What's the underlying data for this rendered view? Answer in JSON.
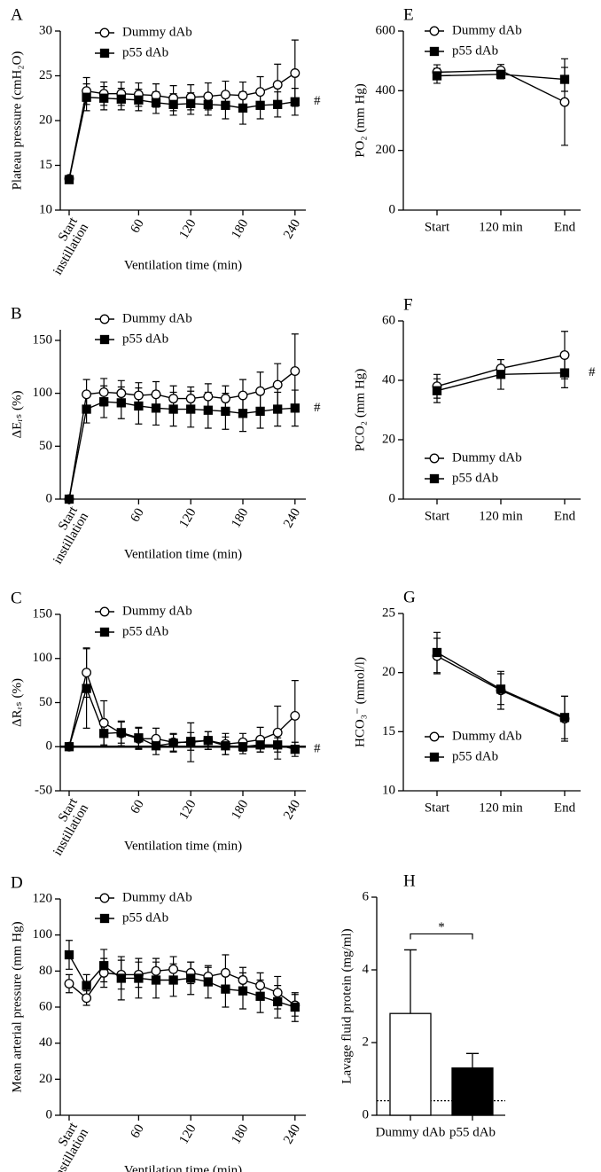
{
  "chart_data": [
    {
      "type": "line",
      "title": "A",
      "ylabel": "Plateau pressure (cmH₂O)",
      "xlabel": "Ventilation time (min)",
      "categories": [
        "Start instillation",
        null,
        null,
        null,
        "60",
        null,
        null,
        "120",
        null,
        null,
        "180",
        null,
        null,
        "240"
      ],
      "series": [
        {
          "name": "Dummy dAb",
          "color": "#000000",
          "fill": "#ffffff",
          "marker": "circle",
          "values": [
            13.5,
            23.3,
            23.0,
            23.0,
            22.9,
            22.8,
            22.5,
            22.6,
            22.7,
            22.9,
            22.8,
            23.2,
            24.0,
            25.3
          ],
          "errors": [
            0.2,
            1.5,
            1.3,
            1.3,
            1.3,
            1.3,
            1.4,
            1.4,
            1.5,
            1.5,
            1.5,
            1.7,
            2.3,
            3.7
          ]
        },
        {
          "name": "p55 dAb",
          "color": "#000000",
          "fill": "#000000",
          "marker": "square",
          "values": [
            13.4,
            22.6,
            22.5,
            22.4,
            22.3,
            22.0,
            21.8,
            21.9,
            21.8,
            21.7,
            21.4,
            21.7,
            21.8,
            22.1
          ],
          "errors": [
            0.2,
            1.5,
            1.3,
            1.2,
            1.2,
            1.2,
            1.2,
            1.2,
            1.2,
            1.5,
            1.8,
            1.5,
            1.4,
            1.5
          ]
        }
      ],
      "ylim": [
        10,
        30
      ],
      "yticks": [
        10,
        15,
        20,
        25,
        30
      ],
      "legend": "upper left",
      "annotation": "#"
    },
    {
      "type": "line",
      "title": "B",
      "ylabel": "ΔEᵣₛ (%)",
      "xlabel": "Ventilation time (min)",
      "categories": [
        "Start instillation",
        null,
        null,
        null,
        "60",
        null,
        null,
        "120",
        null,
        null,
        "180",
        null,
        null,
        "240"
      ],
      "series": [
        {
          "name": "Dummy dAb",
          "color": "#000000",
          "fill": "#ffffff",
          "marker": "circle",
          "values": [
            0,
            99,
            101,
            100,
            98,
            99,
            95,
            95,
            97,
            95,
            98,
            102,
            108,
            121
          ],
          "errors": [
            0,
            14,
            13,
            12,
            12,
            12,
            12,
            11,
            12,
            12,
            15,
            18,
            20,
            35
          ]
        },
        {
          "name": "p55 dAb",
          "color": "#000000",
          "fill": "#000000",
          "marker": "square",
          "values": [
            0,
            85,
            92,
            91,
            88,
            86,
            85,
            85,
            84,
            83,
            81,
            83,
            85,
            86
          ],
          "errors": [
            0,
            13,
            15,
            15,
            17,
            16,
            16,
            17,
            17,
            17,
            17,
            16,
            16,
            17
          ]
        }
      ],
      "ylim": [
        0,
        160
      ],
      "yticks": [
        0,
        50,
        100,
        150
      ],
      "legend": "upper left",
      "annotation": "#"
    },
    {
      "type": "line",
      "title": "C",
      "ylabel": "ΔRᵣₛ (%)",
      "xlabel": "Ventilation time (min)",
      "categories": [
        "Start instillation",
        null,
        null,
        null,
        "60",
        null,
        null,
        "120",
        null,
        null,
        "180",
        null,
        null,
        "240"
      ],
      "series": [
        {
          "name": "Dummy dAb",
          "color": "#000000",
          "fill": "#ffffff",
          "marker": "circle",
          "values": [
            0,
            84,
            27,
            15,
            9,
            9,
            5,
            5,
            7,
            3,
            5,
            8,
            16,
            35
          ],
          "errors": [
            0,
            28,
            25,
            14,
            12,
            12,
            10,
            22,
            10,
            12,
            10,
            14,
            30,
            40
          ]
        },
        {
          "name": "p55 dAb",
          "color": "#000000",
          "fill": "#000000",
          "marker": "square",
          "values": [
            0,
            66,
            15,
            16,
            10,
            1,
            4,
            6,
            7,
            1,
            0,
            2,
            2,
            -3
          ],
          "errors": [
            0,
            45,
            15,
            12,
            12,
            10,
            10,
            10,
            10,
            10,
            8,
            8,
            8,
            8
          ]
        }
      ],
      "ylim": [
        -50,
        150
      ],
      "yticks": [
        -50,
        0,
        50,
        100,
        150
      ],
      "legend": "upper left",
      "annotation": "#",
      "reference_line": 0,
      "reference_style": "solid"
    },
    {
      "type": "line",
      "title": "D",
      "ylabel": "Mean arterial pressure (mm Hg)",
      "xlabel": "Ventilation time (min)",
      "categories": [
        "Start instillation",
        null,
        null,
        null,
        "60",
        null,
        null,
        "120",
        null,
        null,
        "180",
        null,
        null,
        "240"
      ],
      "series": [
        {
          "name": "Dummy dAb",
          "color": "#000000",
          "fill": "#ffffff",
          "marker": "circle",
          "values": [
            73,
            65,
            79,
            78,
            78,
            80,
            81,
            79,
            77,
            79,
            75,
            72,
            68,
            61
          ],
          "errors": [
            5,
            4,
            8,
            8,
            7,
            7,
            7,
            6,
            5,
            10,
            7,
            7,
            9,
            6
          ]
        },
        {
          "name": "p55 dAb",
          "color": "#000000",
          "fill": "#000000",
          "marker": "square",
          "values": [
            89,
            72,
            83,
            76,
            76,
            75,
            75,
            76,
            74,
            70,
            69,
            66,
            63,
            60
          ],
          "errors": [
            8,
            6,
            9,
            12,
            11,
            10,
            9,
            9,
            9,
            10,
            10,
            9,
            9,
            8
          ]
        }
      ],
      "ylim": [
        0,
        120
      ],
      "yticks": [
        0,
        20,
        40,
        60,
        80,
        100,
        120
      ],
      "legend": "upper left"
    },
    {
      "type": "line",
      "title": "E",
      "ylabel": "PO₂ (mm Hg)",
      "categories": [
        "Start",
        "120 min",
        "End"
      ],
      "series": [
        {
          "name": "Dummy dAb",
          "color": "#000000",
          "fill": "#ffffff",
          "marker": "circle",
          "values": [
            462,
            468,
            362
          ],
          "errors": [
            25,
            20,
            145
          ]
        },
        {
          "name": "p55 dAb",
          "color": "#000000",
          "fill": "#000000",
          "marker": "square",
          "values": [
            450,
            455,
            438
          ],
          "errors": [
            25,
            15,
            40
          ]
        }
      ],
      "ylim": [
        0,
        600
      ],
      "yticks": [
        0,
        200,
        400,
        600
      ],
      "legend": "upper left"
    },
    {
      "type": "line",
      "title": "F",
      "ylabel": "PCO₂ (mm Hg)",
      "categories": [
        "Start",
        "120 min",
        "End"
      ],
      "series": [
        {
          "name": "Dummy dAb",
          "color": "#000000",
          "fill": "#ffffff",
          "marker": "circle",
          "values": [
            38,
            44,
            48.5
          ],
          "errors": [
            4,
            3,
            8
          ]
        },
        {
          "name": "p55 dAb",
          "color": "#000000",
          "fill": "#000000",
          "marker": "square",
          "values": [
            36.5,
            42,
            42.5
          ],
          "errors": [
            4,
            5,
            5
          ]
        }
      ],
      "ylim": [
        0,
        60
      ],
      "yticks": [
        0,
        20,
        40,
        60
      ],
      "legend": "lower left",
      "annotation": "#"
    },
    {
      "type": "line",
      "title": "G",
      "ylabel": "HCO₃⁻ (mmol/l)",
      "categories": [
        "Start",
        "120 min",
        "End"
      ],
      "series": [
        {
          "name": "Dummy dAb",
          "color": "#000000",
          "fill": "#ffffff",
          "marker": "circle",
          "values": [
            21.4,
            18.5,
            16.1
          ],
          "errors": [
            1.5,
            1.6,
            1.9
          ]
        },
        {
          "name": "p55 dAb",
          "color": "#000000",
          "fill": "#000000",
          "marker": "square",
          "values": [
            21.7,
            18.6,
            16.2
          ],
          "errors": [
            1.7,
            1.3,
            1.8
          ]
        }
      ],
      "ylim": [
        10,
        25
      ],
      "yticks": [
        10,
        15,
        20,
        25
      ],
      "legend": "lower left"
    },
    {
      "type": "bar",
      "title": "H",
      "ylabel": "Lavage fluid protein (mg/ml)",
      "categories": [
        "Dummy dAb",
        "p55 dAb"
      ],
      "values": [
        2.8,
        1.3
      ],
      "errors": [
        1.75,
        0.4
      ],
      "colors": [
        "#ffffff",
        "#000000"
      ],
      "ylim": [
        0,
        6
      ],
      "yticks": [
        0,
        2,
        4,
        6
      ],
      "annotation": "*",
      "reference_line": 0.4,
      "reference_style": "dotted"
    }
  ]
}
